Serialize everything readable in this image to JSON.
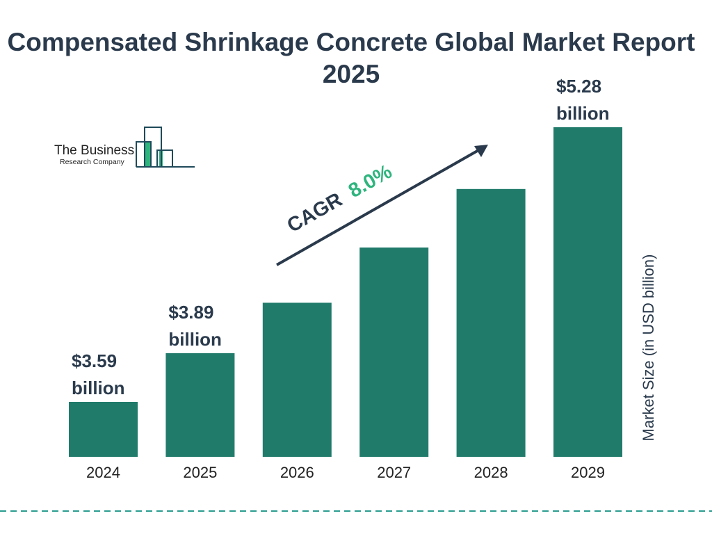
{
  "chart_data": {
    "type": "bar",
    "title": "Compensated Shrinkage Concrete Global Market Report 2025",
    "categories": [
      "2024",
      "2025",
      "2026",
      "2027",
      "2028",
      "2029"
    ],
    "values": [
      3.59,
      3.89,
      4.2,
      4.54,
      4.9,
      5.28
    ],
    "data_labels": [
      {
        "index": 0,
        "line1": "$3.59",
        "line2": "billion"
      },
      {
        "index": 1,
        "line1": "$3.89",
        "line2": "billion"
      },
      {
        "index": 5,
        "line1": "$5.28",
        "line2": "billion"
      }
    ],
    "ylabel": "Market Size (in USD billion)",
    "xlabel": "",
    "grid": false,
    "annotation": {
      "label": "CAGR",
      "value": "8.0%"
    },
    "colors": {
      "bar": "#217b6b",
      "text": "#2a3a4c",
      "cagr": "#2fb47e",
      "dash": "#2a9d8f"
    }
  },
  "logo": {
    "line1": "The Business",
    "line2": "Research Company"
  }
}
